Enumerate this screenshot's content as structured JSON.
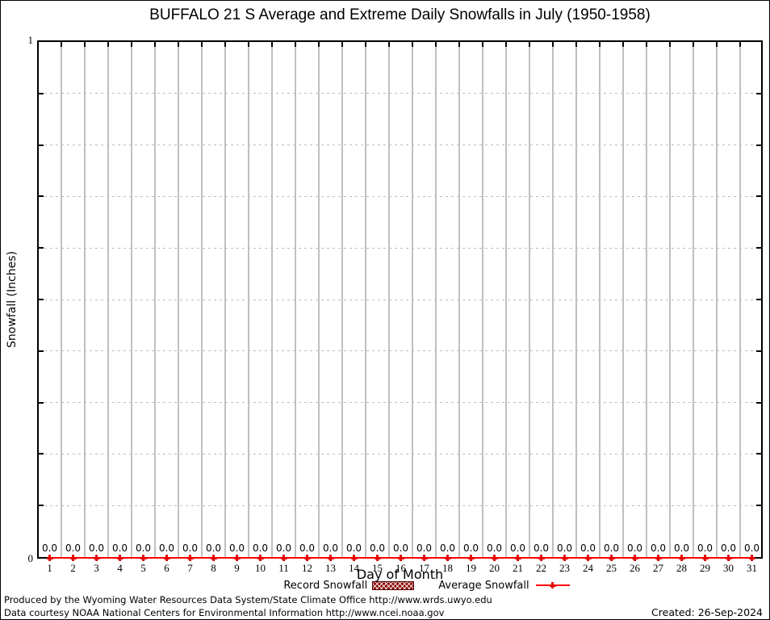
{
  "title": "BUFFALO 21 S Average and Extreme Daily Snowfalls in July (1950-1958)",
  "y_axis": {
    "label": "Snowfall (Inches)",
    "max_tick_label": "1",
    "min_tick_label": "0"
  },
  "x_axis": {
    "label": "Day of Month"
  },
  "legend": {
    "record": {
      "label": "Record Snowfall",
      "style": "hatched-box",
      "color": "#8b0000"
    },
    "average": {
      "label": "Average Snowfall",
      "style": "line-with-point",
      "color": "#ff0000"
    }
  },
  "footer": {
    "line1": "Produced by the Wyoming Water Resources Data System/State Climate Office http://www.wrds.uwyo.edu",
    "line2": "Data courtesy NOAA National Centers for Environmental Information http://www.ncei.noaa.gov",
    "created": "Created: 26-Sep-2024"
  },
  "chart_data": {
    "type": "line",
    "title": "BUFFALO 21 S Average and Extreme Daily Snowfalls in July (1950-1958)",
    "xlabel": "Day of Month",
    "ylabel": "Snowfall (Inches)",
    "xlim": [
      0.5,
      31.5
    ],
    "ylim": [
      0,
      1
    ],
    "x": [
      1,
      2,
      3,
      4,
      5,
      6,
      7,
      8,
      9,
      10,
      11,
      12,
      13,
      14,
      15,
      16,
      17,
      18,
      19,
      20,
      21,
      22,
      23,
      24,
      25,
      26,
      27,
      28,
      29,
      30,
      31
    ],
    "series": [
      {
        "name": "Record Snowfall",
        "type": "boxes-hatched",
        "color": "#8b0000",
        "values": [
          0,
          0,
          0,
          0,
          0,
          0,
          0,
          0,
          0,
          0,
          0,
          0,
          0,
          0,
          0,
          0,
          0,
          0,
          0,
          0,
          0,
          0,
          0,
          0,
          0,
          0,
          0,
          0,
          0,
          0,
          0
        ]
      },
      {
        "name": "Average Snowfall",
        "type": "line-with-points",
        "color": "#ff0000",
        "values": [
          0,
          0,
          0,
          0,
          0,
          0,
          0,
          0,
          0,
          0,
          0,
          0,
          0,
          0,
          0,
          0,
          0,
          0,
          0,
          0,
          0,
          0,
          0,
          0,
          0,
          0,
          0,
          0,
          0,
          0,
          0
        ]
      }
    ],
    "point_label_decimals": 1,
    "yticks": {
      "labeled": [
        0,
        1
      ],
      "minor_interval": 0.1
    },
    "grid": {
      "vertical": "solid gray lines between day columns",
      "horizontal": "dashed gray lines every 0.1"
    },
    "legend_position": "bottom-center"
  }
}
